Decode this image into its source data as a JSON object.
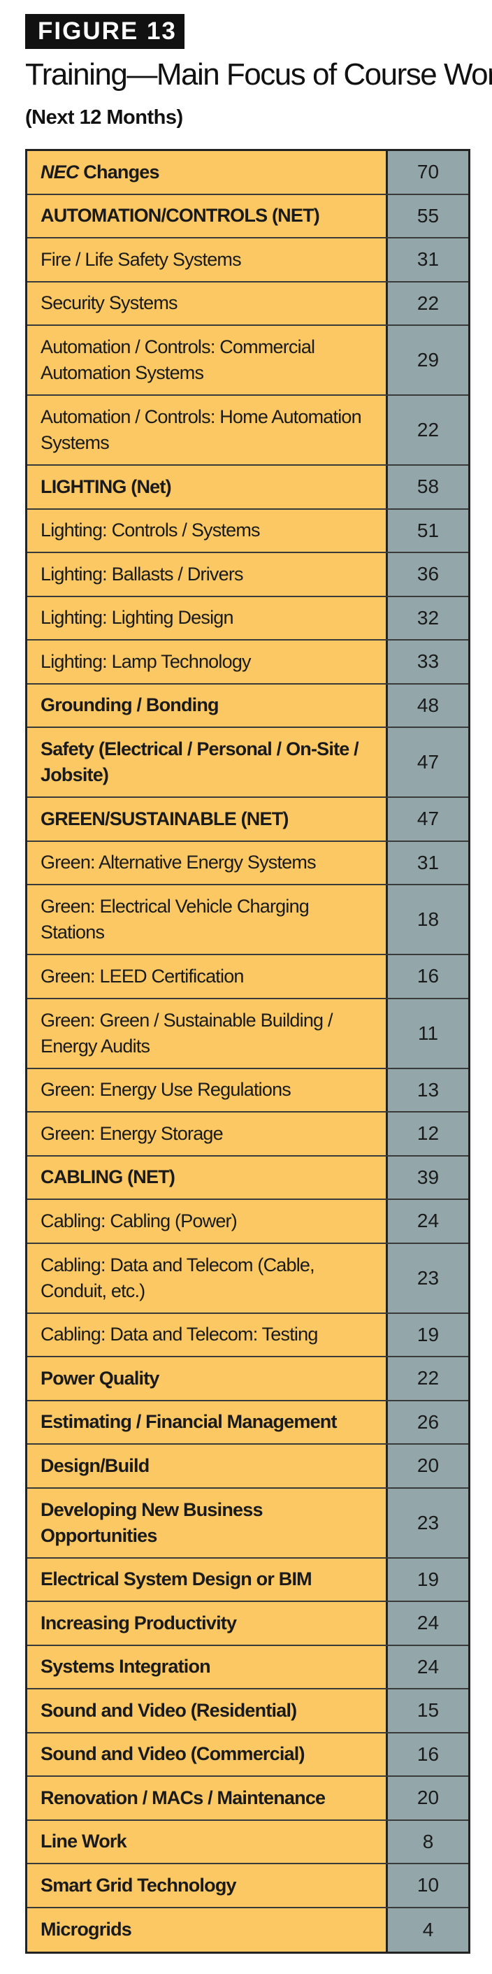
{
  "figure_label": "FIGURE 13",
  "chart_data": {
    "type": "table",
    "title": "Training—Main Focus of Course Work",
    "subtitle": "(Next 12 Months)",
    "colors": {
      "label_bg": "#fbc863",
      "value_bg": "#93a7ab",
      "border": "#222222"
    },
    "rows": [
      {
        "label_em": "NEC",
        "label": " Changes",
        "value": 70,
        "bold": true
      },
      {
        "label": "AUTOMATION/CONTROLS (NET)",
        "value": 55,
        "bold": true
      },
      {
        "label": "Fire / Life Safety Systems",
        "value": 31,
        "bold": false
      },
      {
        "label": "Security Systems",
        "value": 22,
        "bold": false
      },
      {
        "label": "Automation / Controls: Commercial Automation Systems",
        "value": 29,
        "bold": false
      },
      {
        "label": "Automation / Controls: Home Automation Systems",
        "value": 22,
        "bold": false
      },
      {
        "label": "LIGHTING (Net)",
        "value": 58,
        "bold": true
      },
      {
        "label": "Lighting: Controls / Systems",
        "value": 51,
        "bold": false
      },
      {
        "label": "Lighting: Ballasts / Drivers",
        "value": 36,
        "bold": false
      },
      {
        "label": "Lighting: Lighting Design",
        "value": 32,
        "bold": false
      },
      {
        "label": "Lighting: Lamp Technology",
        "value": 33,
        "bold": false
      },
      {
        "label": "Grounding / Bonding",
        "value": 48,
        "bold": true
      },
      {
        "label": "Safety (Electrical / Personal / On-Site / Jobsite)",
        "value": 47,
        "bold": true
      },
      {
        "label": "GREEN/SUSTAINABLE (NET)",
        "value": 47,
        "bold": true
      },
      {
        "label": "Green: Alternative Energy Systems",
        "value": 31,
        "bold": false
      },
      {
        "label": "Green: Electrical Vehicle Charging Stations",
        "value": 18,
        "bold": false
      },
      {
        "label": "Green: LEED Certification",
        "value": 16,
        "bold": false
      },
      {
        "label": "Green: Green / Sustainable Building / Energy Audits",
        "value": 11,
        "bold": false
      },
      {
        "label": " Green: Energy Use Regulations",
        "value": 13,
        "bold": false
      },
      {
        "label": "Green: Energy Storage",
        "value": 12,
        "bold": false
      },
      {
        "label": "CABLING (NET)",
        "value": 39,
        "bold": true
      },
      {
        "label": "Cabling: Cabling (Power)",
        "value": 24,
        "bold": false
      },
      {
        "label": "Cabling: Data and Telecom (Cable, Conduit, etc.)",
        "value": 23,
        "bold": false
      },
      {
        "label": "Cabling: Data and Telecom: Testing",
        "value": 19,
        "bold": false
      },
      {
        "label": "Power Quality",
        "value": 22,
        "bold": true
      },
      {
        "label": "Estimating / Financial Management",
        "value": 26,
        "bold": true
      },
      {
        "label": "Design/Build",
        "value": 20,
        "bold": true
      },
      {
        "label": "Developing New Business Opportunities",
        "value": 23,
        "bold": true
      },
      {
        "label": "Electrical System Design or BIM",
        "value": 19,
        "bold": true
      },
      {
        "label": "Increasing Productivity",
        "value": 24,
        "bold": true
      },
      {
        "label": "Systems Integration",
        "value": 24,
        "bold": true
      },
      {
        "label": "Sound and Video (Residential)",
        "value": 15,
        "bold": true
      },
      {
        "label": "Sound and Video (Commercial)",
        "value": 16,
        "bold": true
      },
      {
        "label": "Renovation / MACs / Maintenance",
        "value": 20,
        "bold": true
      },
      {
        "label": "Line Work",
        "value": 8,
        "bold": true
      },
      {
        "label": "Smart Grid Technology",
        "value": 10,
        "bold": true
      },
      {
        "label": "Microgrids",
        "value": 4,
        "bold": true
      }
    ]
  }
}
